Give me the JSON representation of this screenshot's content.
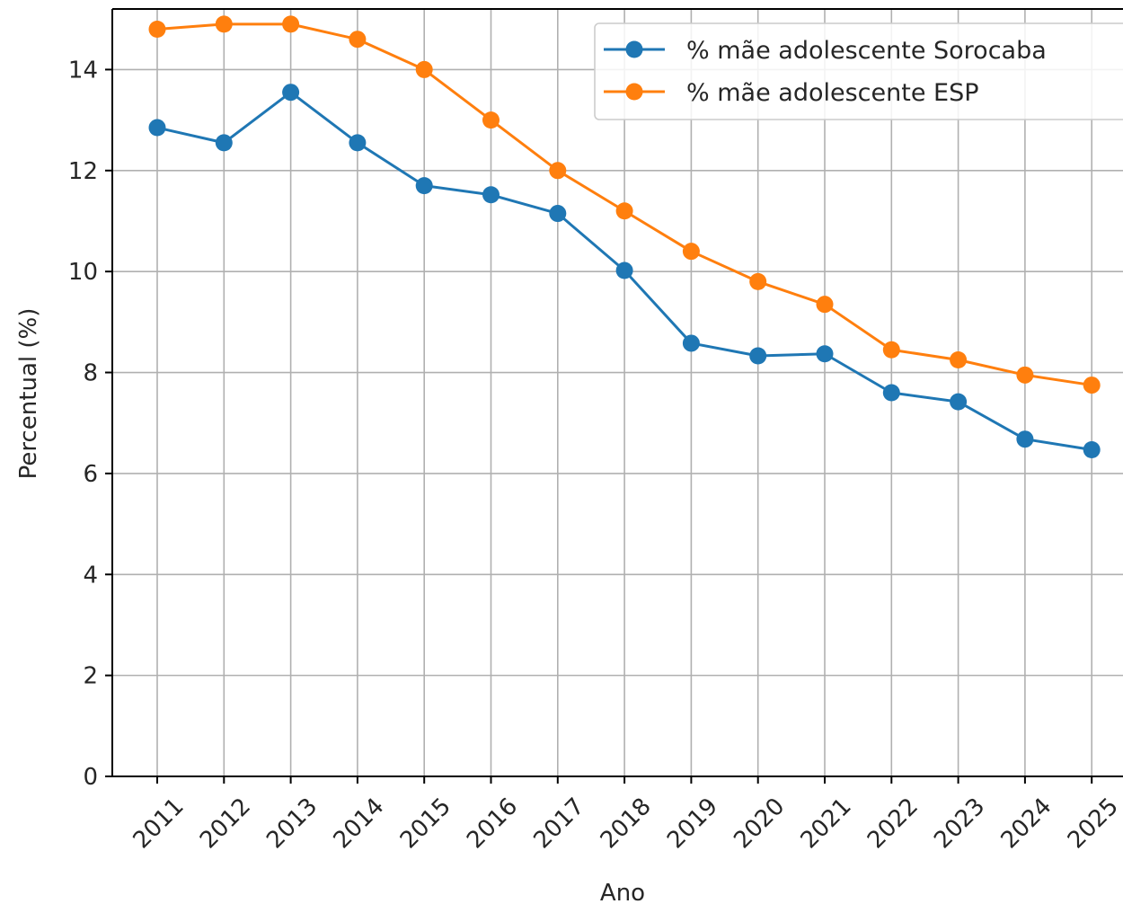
{
  "chart_data": {
    "type": "line",
    "title": "",
    "xlabel": "Ano",
    "ylabel": "Percentual (%)",
    "x": [
      "2011",
      "2012",
      "2013",
      "2014",
      "2015",
      "2016",
      "2017",
      "2018",
      "2019",
      "2020",
      "2021",
      "2022",
      "2023",
      "2024",
      "2025"
    ],
    "ylim": [
      0,
      15.2
    ],
    "yticks": [
      "0",
      "2",
      "4",
      "6",
      "8",
      "10",
      "12",
      "14"
    ],
    "grid": true,
    "legend_position": "top-right",
    "series": [
      {
        "name": "% mãe adolescente Sorocaba",
        "color": "#1f77b4",
        "marker": "circle",
        "values": [
          12.85,
          12.55,
          13.55,
          12.55,
          11.7,
          11.52,
          11.15,
          10.02,
          8.58,
          8.33,
          8.37,
          7.6,
          7.42,
          6.68,
          6.47
        ]
      },
      {
        "name": "% mãe adolescente ESP",
        "color": "#ff7f0e",
        "marker": "circle",
        "values": [
          14.8,
          14.9,
          14.9,
          14.6,
          14.0,
          13.0,
          12.0,
          11.2,
          10.4,
          9.8,
          9.35,
          8.45,
          8.25,
          7.95,
          7.75
        ]
      }
    ]
  }
}
